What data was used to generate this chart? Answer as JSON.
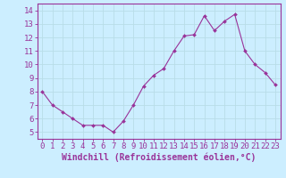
{
  "x": [
    0,
    1,
    2,
    3,
    4,
    5,
    6,
    7,
    8,
    9,
    10,
    11,
    12,
    13,
    14,
    15,
    16,
    17,
    18,
    19,
    20,
    21,
    22,
    23
  ],
  "y": [
    8.0,
    7.0,
    6.5,
    6.0,
    5.5,
    5.5,
    5.5,
    5.0,
    5.8,
    7.0,
    8.4,
    9.2,
    9.7,
    11.0,
    12.1,
    12.2,
    13.6,
    12.5,
    13.2,
    13.7,
    11.0,
    10.0,
    9.4,
    8.5
  ],
  "line_color": "#993399",
  "marker_color": "#993399",
  "bg_color": "#cceeff",
  "grid_color": "#aaddee",
  "axis_color": "#993399",
  "tick_color": "#993399",
  "xlabel": "Windchill (Refroidissement éolien,°C)",
  "ylim": [
    4.5,
    14.5
  ],
  "xlim": [
    -0.5,
    23.5
  ],
  "yticks": [
    5,
    6,
    7,
    8,
    9,
    10,
    11,
    12,
    13,
    14
  ],
  "xticks": [
    0,
    1,
    2,
    3,
    4,
    5,
    6,
    7,
    8,
    9,
    10,
    11,
    12,
    13,
    14,
    15,
    16,
    17,
    18,
    19,
    20,
    21,
    22,
    23
  ],
  "font_color": "#993399",
  "font_size": 6.5,
  "label_font_size": 7.0
}
